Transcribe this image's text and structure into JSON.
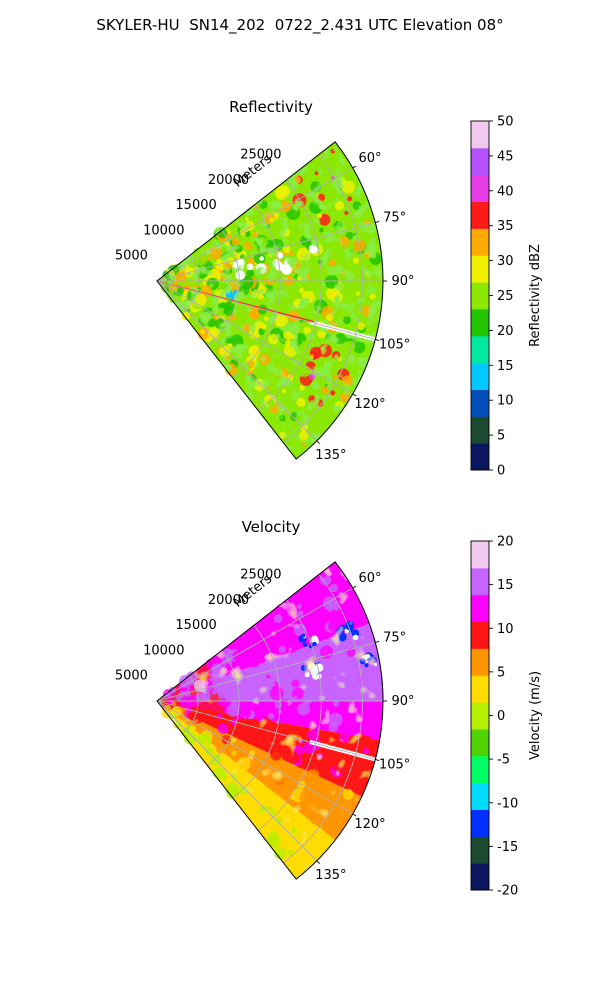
{
  "figure": {
    "suptitle": "SKYLER-HU  SN14_202  0722_2.431 UTC Elevation 08°"
  },
  "chart_data": [
    {
      "type": "heatmap",
      "projection": "polar-sector",
      "title": "Reflectivity",
      "radial_label": "Meters",
      "radial_ticks": [
        5000,
        10000,
        15000,
        20000,
        25000
      ],
      "radial_tick_labels": [
        "5000",
        "10000",
        "15000",
        "20000",
        "25000"
      ],
      "azimuth_range_deg": [
        52,
        142
      ],
      "azimuth_ticks_deg": [
        60,
        75,
        90,
        105,
        120,
        135
      ],
      "azimuth_tick_labels": [
        "60°",
        "75°",
        "90°",
        "105°",
        "120°",
        "135°"
      ],
      "grid": true,
      "colorbar": {
        "label": "Reflectivity dBZ",
        "range": [
          0,
          50
        ],
        "ticks": [
          0,
          5,
          10,
          15,
          20,
          25,
          30,
          35,
          40,
          45,
          50
        ],
        "colors": [
          "#0a1760",
          "#1c4a30",
          "#004fb8",
          "#00c8ff",
          "#00e8a0",
          "#22c400",
          "#8ce800",
          "#f0f000",
          "#ffaa00",
          "#ff1a1a",
          "#e63ce6",
          "#b450ff",
          "#f0c8f0"
        ]
      },
      "dominant_values_dbz": [
        20,
        30
      ],
      "features": {
        "blank_ray_azimuth_deg": 105,
        "peak_cores_dbz": [
          35,
          40
        ]
      }
    },
    {
      "type": "heatmap",
      "projection": "polar-sector",
      "title": "Velocity",
      "radial_label": "Meters",
      "radial_ticks": [
        5000,
        10000,
        15000,
        20000,
        25000
      ],
      "radial_tick_labels": [
        "5000",
        "10000",
        "15000",
        "20000",
        "25000"
      ],
      "azimuth_range_deg": [
        52,
        142
      ],
      "azimuth_ticks_deg": [
        60,
        75,
        90,
        105,
        120,
        135
      ],
      "azimuth_tick_labels": [
        "60°",
        "75°",
        "90°",
        "105°",
        "120°",
        "135°"
      ],
      "grid": true,
      "colorbar": {
        "label": "Velocity (m/s)",
        "range": [
          -20,
          20
        ],
        "ticks": [
          -20,
          -15,
          -10,
          -5,
          0,
          5,
          10,
          15,
          20
        ],
        "colors": [
          "#0a1760",
          "#1c4a30",
          "#0030ff",
          "#00dcff",
          "#00ff64",
          "#50d200",
          "#b4f000",
          "#ffdc00",
          "#ff9600",
          "#ff1414",
          "#ff00ff",
          "#c864ff",
          "#f0c8f0"
        ]
      },
      "azimuth_sectors_velocity_ms": [
        {
          "from_deg": 52,
          "to_deg": 70,
          "velocity_ms": 13
        },
        {
          "from_deg": 70,
          "to_deg": 90,
          "velocity_ms": 15
        },
        {
          "from_deg": 90,
          "to_deg": 100,
          "velocity_ms": 13
        },
        {
          "from_deg": 100,
          "to_deg": 115,
          "velocity_ms": 10
        },
        {
          "from_deg": 115,
          "to_deg": 128,
          "velocity_ms": 6
        },
        {
          "from_deg": 128,
          "to_deg": 142,
          "velocity_ms": 2
        }
      ],
      "features": {
        "blank_ray_azimuth_deg": 105,
        "negative_cluster_velocity_ms": -12
      }
    }
  ]
}
